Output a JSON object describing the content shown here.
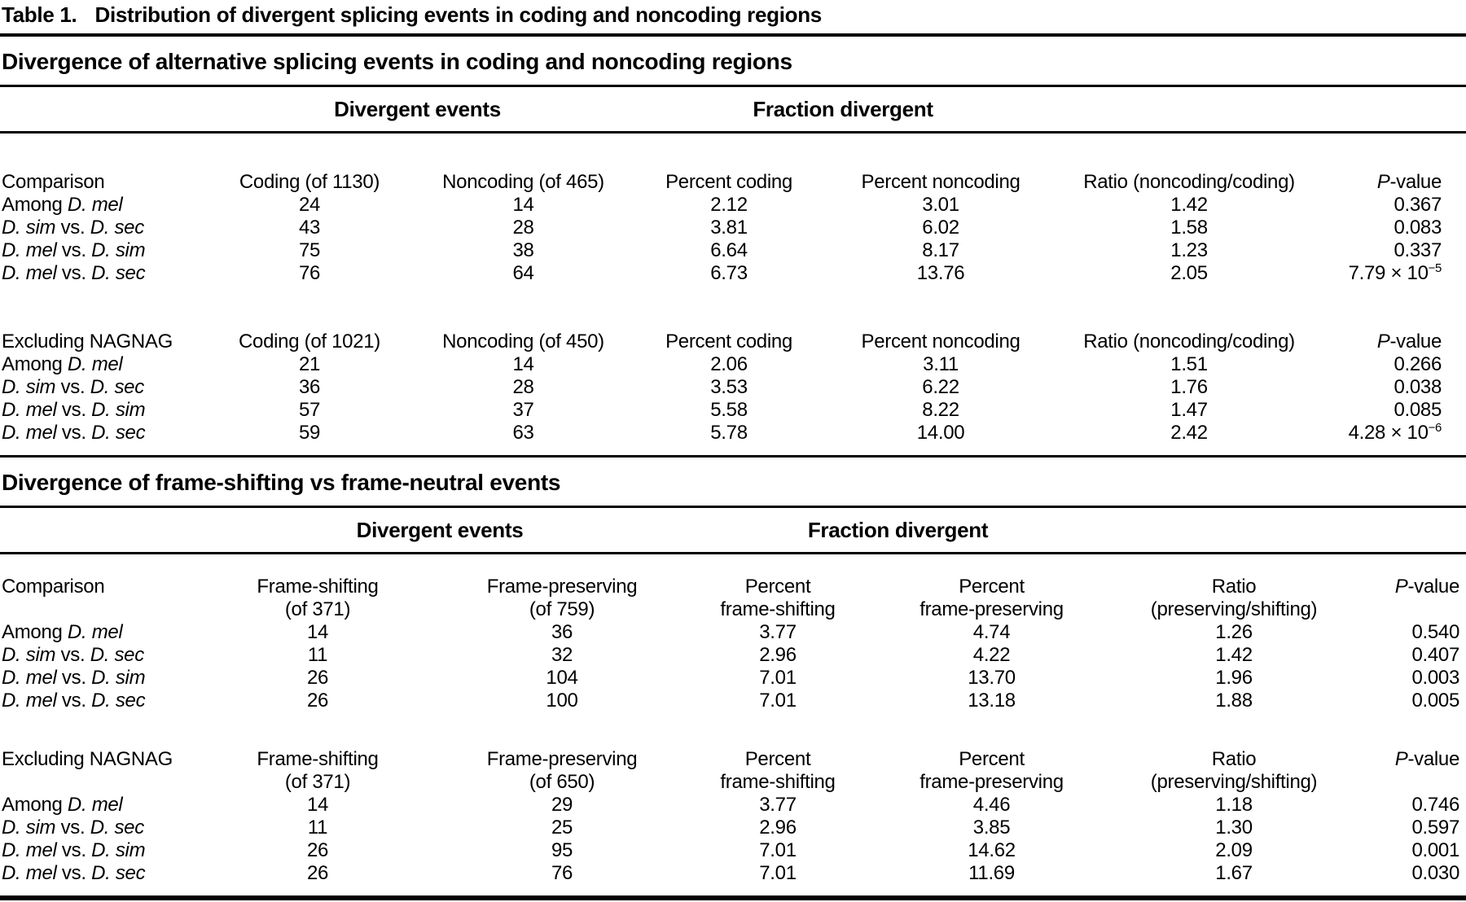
{
  "title": {
    "label": "Table 1.",
    "text": "Distribution of divergent splicing events in coding and noncoding regions"
  },
  "tables": [
    {
      "heading": "Divergence of alternative splicing events in coding and noncoding regions",
      "group": {
        "divergent": "Divergent events",
        "fraction": "Fraction divergent"
      },
      "blocks": [
        {
          "header": {
            "c0": "Comparison",
            "c1": "Coding (of 1130)",
            "c2": "Noncoding (of 465)",
            "c3": "Percent coding",
            "c4": "Percent noncoding",
            "c5": "Ratio (noncoding/coding)",
            "p_italic": "P",
            "p_rest": "-value"
          },
          "rows": [
            {
              "pre": "Among ",
              "a": "D. mel",
              "mid": "",
              "b": "",
              "c1": "24",
              "c2": "14",
              "c3": "2.12",
              "c4": "3.01",
              "c5": "1.42",
              "p": "0.367",
              "p_sup": ""
            },
            {
              "pre": "",
              "a": "D. sim",
              "mid": " vs. ",
              "b": "D. sec",
              "c1": "43",
              "c2": "28",
              "c3": "3.81",
              "c4": "6.02",
              "c5": "1.58",
              "p": "0.083",
              "p_sup": ""
            },
            {
              "pre": "",
              "a": "D. mel",
              "mid": " vs. ",
              "b": "D. sim",
              "c1": "75",
              "c2": "38",
              "c3": "6.64",
              "c4": "8.17",
              "c5": "1.23",
              "p": "0.337",
              "p_sup": ""
            },
            {
              "pre": "",
              "a": "D. mel",
              "mid": " vs. ",
              "b": "D. sec",
              "c1": "76",
              "c2": "64",
              "c3": "6.73",
              "c4": "13.76",
              "c5": "2.05",
              "p": "7.79 × 10",
              "p_sup": "−5"
            }
          ]
        },
        {
          "header": {
            "c0": "Excluding NAGNAG",
            "c1": "Coding (of 1021)",
            "c2": "Noncoding (of 450)",
            "c3": "Percent coding",
            "c4": "Percent noncoding",
            "c5": "Ratio (noncoding/coding)",
            "p_italic": "P",
            "p_rest": "-value"
          },
          "rows": [
            {
              "pre": "Among ",
              "a": "D. mel",
              "mid": "",
              "b": "",
              "c1": "21",
              "c2": "14",
              "c3": "2.06",
              "c4": "3.11",
              "c5": "1.51",
              "p": "0.266",
              "p_sup": ""
            },
            {
              "pre": "",
              "a": "D. sim",
              "mid": " vs. ",
              "b": "D. sec",
              "c1": "36",
              "c2": "28",
              "c3": "3.53",
              "c4": "6.22",
              "c5": "1.76",
              "p": "0.038",
              "p_sup": ""
            },
            {
              "pre": "",
              "a": "D. mel",
              "mid": " vs. ",
              "b": "D. sim",
              "c1": "57",
              "c2": "37",
              "c3": "5.58",
              "c4": "8.22",
              "c5": "1.47",
              "p": "0.085",
              "p_sup": ""
            },
            {
              "pre": "",
              "a": "D. mel",
              "mid": " vs. ",
              "b": "D. sec",
              "c1": "59",
              "c2": "63",
              "c3": "5.78",
              "c4": "14.00",
              "c5": "2.42",
              "p": "4.28 × 10",
              "p_sup": "−6"
            }
          ]
        }
      ]
    },
    {
      "heading": "Divergence of frame-shifting vs frame-neutral events",
      "group": {
        "divergent": "Divergent events",
        "fraction": "Fraction divergent"
      },
      "blocks": [
        {
          "header": {
            "c0": "Comparison",
            "c1": "Frame-shifting\n(of 371)",
            "c2": "Frame-preserving\n(of 759)",
            "c3": "Percent\nframe-shifting",
            "c4": "Percent\nframe-preserving",
            "c5": "Ratio\n(preserving/shifting)",
            "p_italic": "P",
            "p_rest": "-value"
          },
          "rows": [
            {
              "pre": "Among ",
              "a": "D. mel",
              "mid": "",
              "b": "",
              "c1": "14",
              "c2": "36",
              "c3": "3.77",
              "c4": "4.74",
              "c5": "1.26",
              "p": "0.540",
              "p_sup": ""
            },
            {
              "pre": "",
              "a": "D. sim",
              "mid": " vs. ",
              "b": "D. sec",
              "c1": "11",
              "c2": "32",
              "c3": "2.96",
              "c4": "4.22",
              "c5": "1.42",
              "p": "0.407",
              "p_sup": ""
            },
            {
              "pre": "",
              "a": "D. mel",
              "mid": " vs. ",
              "b": "D. sim",
              "c1": "26",
              "c2": "104",
              "c3": "7.01",
              "c4": "13.70",
              "c5": "1.96",
              "p": "0.003",
              "p_sup": ""
            },
            {
              "pre": "",
              "a": "D. mel",
              "mid": " vs. ",
              "b": "D. sec",
              "c1": "26",
              "c2": "100",
              "c3": "7.01",
              "c4": "13.18",
              "c5": "1.88",
              "p": "0.005",
              "p_sup": ""
            }
          ]
        },
        {
          "header": {
            "c0": "Excluding NAGNAG",
            "c1": "Frame-shifting\n(of 371)",
            "c2": "Frame-preserving\n(of 650)",
            "c3": "Percent\nframe-shifting",
            "c4": "Percent\nframe-preserving",
            "c5": "Ratio\n(preserving/shifting)",
            "p_italic": "P",
            "p_rest": "-value"
          },
          "rows": [
            {
              "pre": "Among ",
              "a": "D. mel",
              "mid": "",
              "b": "",
              "c1": "14",
              "c2": "29",
              "c3": "3.77",
              "c4": "4.46",
              "c5": "1.18",
              "p": "0.746",
              "p_sup": ""
            },
            {
              "pre": "",
              "a": "D. sim",
              "mid": " vs. ",
              "b": "D. sec",
              "c1": "11",
              "c2": "25",
              "c3": "2.96",
              "c4": "3.85",
              "c5": "1.30",
              "p": "0.597",
              "p_sup": ""
            },
            {
              "pre": "",
              "a": "D. mel",
              "mid": " vs. ",
              "b": "D. sim",
              "c1": "26",
              "c2": "95",
              "c3": "7.01",
              "c4": "14.62",
              "c5": "2.09",
              "p": "0.001",
              "p_sup": ""
            },
            {
              "pre": "",
              "a": "D. mel",
              "mid": " vs. ",
              "b": "D. sec",
              "c1": "26",
              "c2": "76",
              "c3": "7.01",
              "c4": "11.69",
              "c5": "1.67",
              "p": "0.030",
              "p_sup": ""
            }
          ]
        }
      ]
    }
  ]
}
